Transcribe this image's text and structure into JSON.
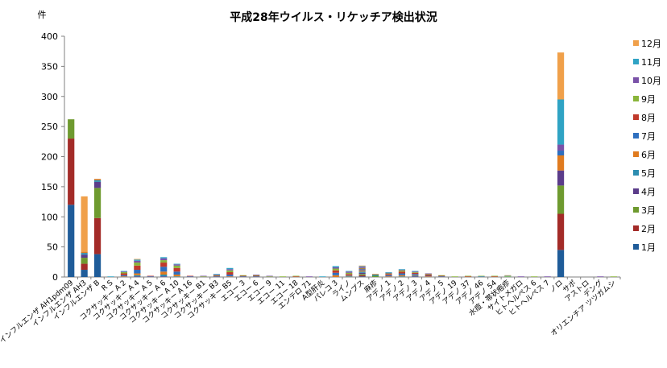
{
  "chart_data": {
    "type": "bar",
    "stacked": true,
    "title": "平成28年ウイルス・リケッチア検出状況",
    "ylabel": "件",
    "xlabel": "",
    "ylim": [
      0,
      400
    ],
    "yticks": [
      0,
      50,
      100,
      150,
      200,
      250,
      300,
      350,
      400
    ],
    "grid": false,
    "legend_position": "right",
    "categories": [
      "インフルエンザ AH1pdm09",
      "インフルエンザ AH3",
      "インフルエンザ B",
      "R S",
      "コクサッキー A 2",
      "コクサッキー A 4",
      "コクサッキー A 5",
      "コクサッキー A 6",
      "コクサッキー A 10",
      "コクサッキー A 16",
      "コクサッキー B1",
      "コクサッキー B3",
      "コクサッキー B5",
      "エコー 3",
      "エコー 6",
      "エコー 9",
      "エコー 11",
      "エコー 18",
      "エンテロ 71",
      "A型肝炎",
      "パレコ 3",
      "ライノ",
      "ムンプス",
      "麻疹",
      "アデノ 1",
      "アデノ 2",
      "アデノ 3",
      "アデノ 4",
      "アデノ 5",
      "アデノ 19",
      "アデノ 37",
      "アデノ 46",
      "アデノ 54",
      "水痘・帯状疱疹",
      "サイトメガロ",
      "ヒトヘルペス 6",
      "ヒトヘルペス 7",
      "ノロ",
      "サポ",
      "アストロ",
      "デング",
      "オリエンチア ツツガムシ"
    ],
    "series": [
      {
        "name": "1月",
        "values": [
          120,
          12,
          38,
          0,
          0,
          0,
          0,
          0,
          0,
          0,
          0,
          0,
          0,
          0,
          0,
          0,
          0,
          0,
          0,
          0,
          0,
          0,
          1,
          0,
          0,
          0,
          0,
          0,
          0,
          0,
          0,
          0,
          0,
          0,
          0,
          0,
          0,
          45,
          0,
          0,
          0,
          0
        ]
      },
      {
        "name": "2月",
        "values": [
          110,
          10,
          60,
          0,
          0,
          0,
          0,
          0,
          0,
          0,
          0,
          0,
          0,
          0,
          0,
          0,
          0,
          0,
          0,
          0,
          0,
          0,
          2,
          0,
          0,
          0,
          0,
          0,
          0,
          0,
          0,
          0,
          0,
          0,
          0,
          0,
          0,
          60,
          0,
          0,
          0,
          0
        ]
      },
      {
        "name": "3月",
        "values": [
          32,
          10,
          50,
          0,
          0,
          0,
          0,
          0,
          0,
          0,
          0,
          0,
          0,
          0,
          0,
          0,
          0,
          0,
          0,
          0,
          0,
          0,
          2,
          2,
          0,
          0,
          0,
          0,
          0,
          0,
          0,
          0,
          0,
          0,
          0,
          0,
          0,
          47,
          0,
          0,
          0,
          0
        ]
      },
      {
        "name": "4月",
        "values": [
          0,
          5,
          10,
          0,
          0,
          1,
          0,
          1,
          0,
          0,
          0,
          0,
          0,
          0,
          0,
          0,
          0,
          0,
          0,
          0,
          0,
          0,
          2,
          0,
          0,
          0,
          1,
          0,
          0,
          0,
          0,
          0,
          0,
          0,
          0,
          0,
          0,
          25,
          0,
          0,
          0,
          0
        ]
      },
      {
        "name": "5月",
        "values": [
          0,
          3,
          3,
          0,
          0,
          2,
          0,
          3,
          1,
          0,
          0,
          0,
          0,
          0,
          0,
          0,
          0,
          0,
          0,
          0,
          0,
          1,
          2,
          2,
          0,
          1,
          1,
          0,
          0,
          0,
          0,
          0,
          0,
          0,
          0,
          0,
          0,
          0,
          0,
          0,
          0,
          0
        ]
      },
      {
        "name": "6月",
        "values": [
          0,
          2,
          2,
          0,
          1,
          3,
          0,
          5,
          3,
          0,
          0,
          0,
          1,
          0,
          0,
          0,
          0,
          0,
          0,
          0,
          3,
          1,
          2,
          1,
          1,
          2,
          1,
          1,
          0,
          0,
          0,
          0,
          0,
          0,
          0,
          0,
          0,
          25,
          0,
          0,
          0,
          0
        ]
      },
      {
        "name": "7月",
        "values": [
          0,
          0,
          0,
          0,
          2,
          6,
          1,
          8,
          5,
          1,
          0,
          1,
          3,
          1,
          1,
          0,
          0,
          0,
          0,
          0,
          4,
          1,
          2,
          0,
          2,
          3,
          2,
          1,
          1,
          0,
          0,
          1,
          0,
          0,
          0,
          0,
          0,
          8,
          0,
          0,
          0,
          0
        ]
      },
      {
        "name": "8月",
        "values": [
          0,
          0,
          0,
          0,
          3,
          7,
          1,
          7,
          6,
          1,
          0,
          1,
          4,
          1,
          1,
          0,
          0,
          1,
          0,
          0,
          4,
          2,
          1,
          0,
          2,
          3,
          2,
          2,
          1,
          0,
          1,
          0,
          1,
          0,
          0,
          0,
          0,
          0,
          0,
          0,
          0,
          0
        ]
      },
      {
        "name": "9月",
        "values": [
          0,
          0,
          0,
          0,
          2,
          5,
          0,
          4,
          4,
          0,
          1,
          1,
          3,
          1,
          1,
          1,
          1,
          1,
          0,
          0,
          3,
          2,
          1,
          0,
          1,
          2,
          1,
          1,
          1,
          1,
          1,
          1,
          1,
          1,
          0,
          1,
          0,
          0,
          0,
          0,
          0,
          1
        ]
      },
      {
        "name": "10月",
        "values": [
          0,
          0,
          0,
          0,
          1,
          3,
          0,
          3,
          2,
          0,
          1,
          1,
          2,
          0,
          1,
          1,
          0,
          0,
          1,
          0,
          2,
          2,
          2,
          0,
          1,
          1,
          1,
          1,
          0,
          0,
          0,
          0,
          0,
          0,
          1,
          0,
          1,
          10,
          0,
          0,
          1,
          0
        ]
      },
      {
        "name": "11月",
        "values": [
          0,
          0,
          0,
          1,
          1,
          2,
          0,
          2,
          1,
          0,
          0,
          1,
          2,
          0,
          0,
          0,
          0,
          0,
          0,
          1,
          2,
          1,
          1,
          0,
          1,
          1,
          1,
          0,
          0,
          0,
          0,
          0,
          0,
          1,
          0,
          0,
          0,
          75,
          0,
          0,
          0,
          0
        ]
      },
      {
        "name": "12月",
        "values": [
          0,
          92,
          0,
          0,
          0,
          1,
          0,
          0,
          0,
          0,
          0,
          0,
          0,
          0,
          0,
          0,
          0,
          0,
          0,
          0,
          0,
          0,
          1,
          0,
          0,
          0,
          0,
          0,
          0,
          0,
          0,
          0,
          0,
          1,
          0,
          0,
          0,
          78,
          0,
          0,
          0,
          0
        ]
      }
    ],
    "colors": [
      "#1f5c99",
      "#a32b28",
      "#6e9a2f",
      "#5b3c8a",
      "#2c8db0",
      "#e07b1f",
      "#2e6fbf",
      "#c0392b",
      "#8ab53a",
      "#7a52a8",
      "#2fa3c4",
      "#f0a04a"
    ]
  }
}
